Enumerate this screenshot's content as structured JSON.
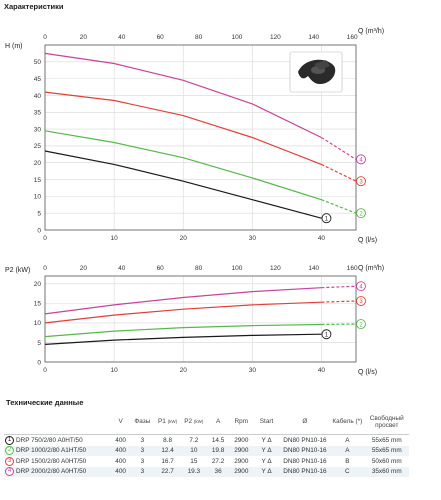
{
  "page": {
    "title": "Характеристики"
  },
  "colors": {
    "s1": "#1a1a1a",
    "s2": "#56b84a",
    "s3": "#e0403a",
    "s4": "#c8449a",
    "grid": "#d8d8d8",
    "frame": "#555555"
  },
  "chart_data": [
    {
      "type": "line",
      "title": "",
      "ylabel": "H (m)",
      "xlabel": "Q (l/s)",
      "x2label": "Q (m³/h)",
      "xlim": [
        0,
        45
      ],
      "ylim": [
        0,
        55
      ],
      "xticks": [
        "0",
        "10",
        "20",
        "30",
        "40"
      ],
      "x2ticks": [
        "0",
        "20",
        "40",
        "60",
        "80",
        "100",
        "120",
        "140",
        "160"
      ],
      "yticks": [
        "0",
        "5",
        "10",
        "15",
        "20",
        "25",
        "30",
        "35",
        "40",
        "45",
        "50"
      ],
      "grid": true,
      "series": [
        {
          "name": "1",
          "color": "#1a1a1a",
          "dashed_tail": false,
          "points": [
            [
              0,
              23.5
            ],
            [
              10,
              19.5
            ],
            [
              20,
              14.5
            ],
            [
              30,
              9
            ],
            [
              40,
              3.5
            ]
          ]
        },
        {
          "name": "2",
          "color": "#56b84a",
          "dashed_tail": true,
          "tail_from": 40,
          "points": [
            [
              0,
              29.5
            ],
            [
              10,
              26
            ],
            [
              20,
              21.5
            ],
            [
              30,
              15.5
            ],
            [
              40,
              9
            ],
            [
              45,
              5
            ]
          ]
        },
        {
          "name": "3",
          "color": "#e0403a",
          "dashed_tail": true,
          "tail_from": 40,
          "points": [
            [
              0,
              41
            ],
            [
              10,
              38.5
            ],
            [
              20,
              34
            ],
            [
              30,
              27.5
            ],
            [
              40,
              19.5
            ],
            [
              45,
              14.5
            ]
          ]
        },
        {
          "name": "4",
          "color": "#c8449a",
          "dashed_tail": true,
          "tail_from": 40,
          "points": [
            [
              0,
              52.5
            ],
            [
              10,
              49.5
            ],
            [
              20,
              44.5
            ],
            [
              30,
              37.5
            ],
            [
              40,
              27.5
            ],
            [
              45,
              21
            ]
          ]
        }
      ]
    },
    {
      "type": "line",
      "title": "",
      "ylabel": "P2 (kW)",
      "xlabel": "Q (l/s)",
      "x2label": "Q (m³/h)",
      "xlim": [
        0,
        45
      ],
      "ylim": [
        0,
        22
      ],
      "xticks": [
        "0",
        "10",
        "20",
        "30",
        "40"
      ],
      "x2ticks": [
        "0",
        "20",
        "40",
        "60",
        "80",
        "100",
        "120",
        "140",
        "160"
      ],
      "yticks": [
        "0",
        "5",
        "10",
        "15",
        "20"
      ],
      "grid": true,
      "series": [
        {
          "name": "1",
          "color": "#1a1a1a",
          "dashed_tail": false,
          "points": [
            [
              0,
              4.5
            ],
            [
              10,
              5.6
            ],
            [
              20,
              6.3
            ],
            [
              30,
              6.8
            ],
            [
              40,
              7.1
            ]
          ]
        },
        {
          "name": "2",
          "color": "#56b84a",
          "dashed_tail": true,
          "tail_from": 40,
          "points": [
            [
              0,
              6.5
            ],
            [
              10,
              7.9
            ],
            [
              20,
              8.8
            ],
            [
              30,
              9.3
            ],
            [
              40,
              9.6
            ],
            [
              45,
              9.7
            ]
          ]
        },
        {
          "name": "3",
          "color": "#e0403a",
          "dashed_tail": true,
          "tail_from": 40,
          "points": [
            [
              0,
              10
            ],
            [
              10,
              12
            ],
            [
              20,
              13.5
            ],
            [
              30,
              14.6
            ],
            [
              40,
              15.3
            ],
            [
              45,
              15.6
            ]
          ]
        },
        {
          "name": "4",
          "color": "#c8449a",
          "dashed_tail": true,
          "tail_from": 40,
          "points": [
            [
              0,
              12.3
            ],
            [
              10,
              14.6
            ],
            [
              20,
              16.5
            ],
            [
              30,
              18
            ],
            [
              40,
              19
            ],
            [
              45,
              19.4
            ]
          ]
        }
      ]
    }
  ],
  "table": {
    "title": "Технические данные",
    "headers": {
      "model": "",
      "v": "V",
      "phases": "Фазы",
      "p1": "P1",
      "p1_unit": "(kW)",
      "p2": "P2",
      "p2_unit": "(kW)",
      "a": "A",
      "rpm": "Rpm",
      "start": "Start",
      "diam": "Ø",
      "cable": "Кабель (*)",
      "passage": "Свободный просвет"
    },
    "rows": [
      {
        "num": "1",
        "color": "#1a1a1a",
        "model": "DRP 750/2/80 A0HT/50",
        "v": "400",
        "phases": "3",
        "p1": "8.8",
        "p2": "7.2",
        "a": "14.5",
        "rpm": "2900",
        "start": "Y Δ",
        "diam": "DN80 PN10-16",
        "cable": "A",
        "passage": "55x65 mm"
      },
      {
        "num": "2",
        "color": "#56b84a",
        "model": "DRP 1000/2/80 A1HT/50",
        "v": "400",
        "phases": "3",
        "p1": "12.4",
        "p2": "10",
        "a": "19.8",
        "rpm": "2900",
        "start": "Y Δ",
        "diam": "DN80 PN10-16",
        "cable": "A",
        "passage": "55x65 mm"
      },
      {
        "num": "3",
        "color": "#e0403a",
        "model": "DRP 1500/2/80 A0HT/50",
        "v": "400",
        "phases": "3",
        "p1": "16.7",
        "p2": "15",
        "a": "27.2",
        "rpm": "2900",
        "start": "Y Δ",
        "diam": "DN80 PN10-16",
        "cable": "B",
        "passage": "50x60 mm"
      },
      {
        "num": "4",
        "color": "#c8449a",
        "model": "DRP 2000/2/80 A0HT/50",
        "v": "400",
        "phases": "3",
        "p1": "22.7",
        "p2": "19.3",
        "a": "36",
        "rpm": "2900",
        "start": "Y Δ",
        "diam": "DN80 PN10-16",
        "cable": "C",
        "passage": "35x60 mm"
      }
    ]
  }
}
